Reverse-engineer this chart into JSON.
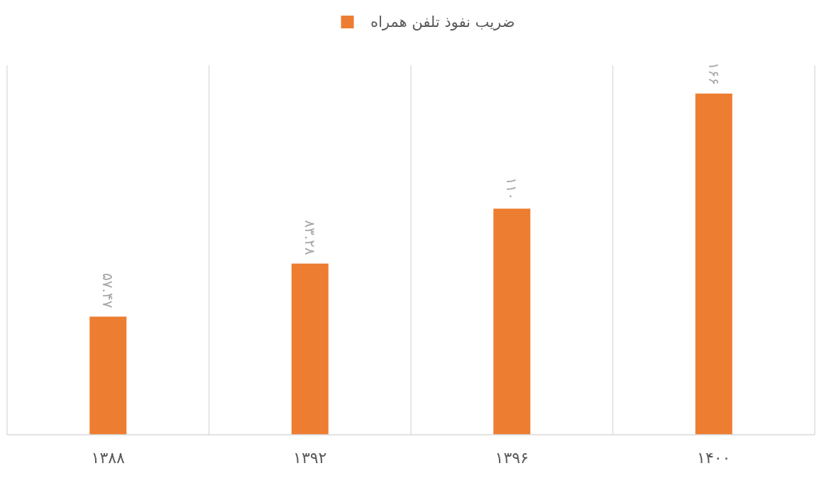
{
  "chart_data": {
    "type": "bar",
    "categories": [
      "۱۳۸۸",
      "۱۳۹۲",
      "۱۳۹۶",
      "۱۴۰۰"
    ],
    "series": [
      {
        "name": "ضریب نفوذ تلفن همراه",
        "color": "#ed7d31",
        "values": [
          57.47,
          83.28,
          110,
          166
        ],
        "value_labels": [
          "۵۷.۴۷",
          "۸۳.۲۸",
          "۱۱۰",
          "۱۶۶"
        ]
      }
    ],
    "grid": "x",
    "legend": "top"
  }
}
